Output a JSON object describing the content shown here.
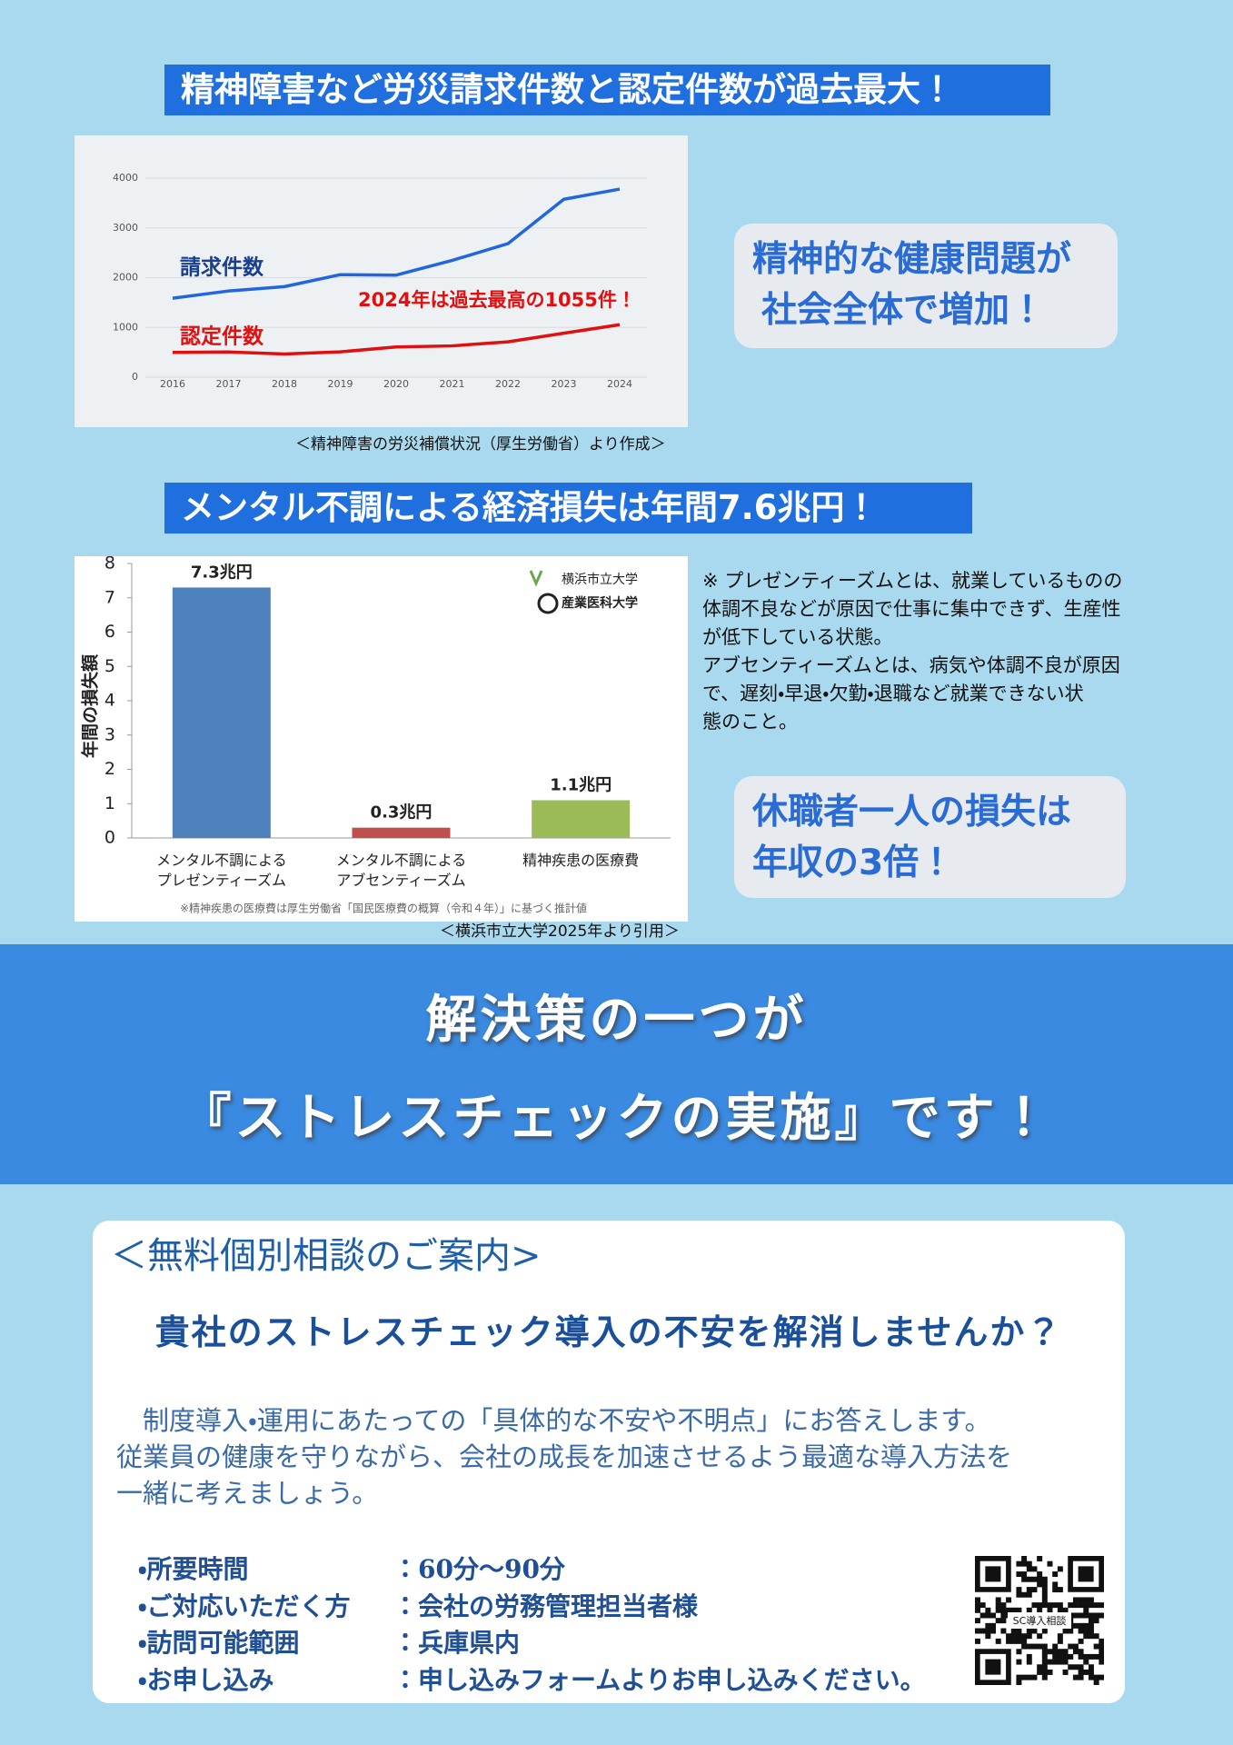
{
  "heading_1": "精神障害など労災請求件数と認定件数が過去最大！",
  "callout_1": [
    "精神的な健康問題が",
    "社会全体で増加！"
  ],
  "source_1": "＜精神障害の労災補償状況（厚生労働省）より作成＞",
  "heading_2": "メンタル不調による経済損失は年間7.6兆円！",
  "note": [
    "※ プレゼンティーズムとは、就業しているものの",
    "体調不良などが原因で仕事に集中できず、生産性",
    "が低下している状態。",
    "アブセンティーズムとは、病気や体調不良が原因",
    "で、遅刻・早退・欠勤・退職など就業できない状",
    "態のこと。"
  ],
  "callout_2": [
    "休職者一人の損失は",
    "年収の3倍！"
  ],
  "source_2": "＜横浜市立大学2025年より引用＞",
  "banner": [
    "解決策の一つが",
    "『ストレスチェックの実施』です！"
  ],
  "consultation": {
    "title": "＜無料個別相談のご案内>",
    "question": "貴社のストレスチェック導入の不安を解消しませんか？",
    "body": [
      "　制度導入・運用にあたっての「具体的な不安や不明点」にお答えします。",
      "従業員の健康を守りながら、会社の成長を加速させるよう最適な導入方法を",
      "一緒に考えましょう。"
    ],
    "items": [
      {
        "label": "・所要時間",
        "value": "：60分～90分"
      },
      {
        "label": "・ご対応いただく方",
        "value": "：会社の労務管理担当者様"
      },
      {
        "label": "・訪問可能範囲",
        "value": "：兵庫県内"
      },
      {
        "label": "・お申し込み",
        "value": "：申し込みフォームよりお申し込みください。"
      }
    ],
    "qr_label": "SC導入相談"
  },
  "chart_data": [
    {
      "type": "line",
      "categories": [
        "2016",
        "2017",
        "2018",
        "2019",
        "2020",
        "2021",
        "2022",
        "2023",
        "2024"
      ],
      "series": [
        {
          "name": "請求件数",
          "color": "#2266dd",
          "label_color": "#1a3f8f",
          "values": [
            1586,
            1732,
            1820,
            2060,
            2051,
            2346,
            2683,
            3575,
            3780
          ]
        },
        {
          "name": "認定件数",
          "color": "#e01010",
          "label_color": "#e01010",
          "values": [
            498,
            506,
            465,
            509,
            608,
            629,
            710,
            883,
            1055
          ]
        }
      ],
      "annotation": "2024年は過去最高の1055件！",
      "ylim": [
        0,
        4000
      ],
      "yticks": [
        0,
        1000,
        2000,
        3000,
        4000
      ],
      "grid": true
    },
    {
      "type": "bar",
      "categories": [
        "メンタル不調による\nプレゼンティーズム",
        "メンタル不調による\nアブセンティーズム",
        "精神疾患の医療費"
      ],
      "values": [
        7.3,
        0.3,
        1.1
      ],
      "value_labels": [
        "7.3兆円",
        "0.3兆円",
        "1.1兆円"
      ],
      "colors": [
        "#4f81bd",
        "#c0504d",
        "#9bbb59"
      ],
      "y_label": "年間の損失額",
      "ylim": [
        0,
        8
      ],
      "yticks": [
        0,
        1,
        2,
        3,
        4,
        5,
        6,
        7,
        8
      ],
      "grid": false,
      "footnote": "※精神疾患の医療費は厚生労働省「国民医療費の概算（令和４年）」に基づく推計値",
      "logos": [
        "横浜市立大学",
        "産業医科大学"
      ]
    }
  ]
}
